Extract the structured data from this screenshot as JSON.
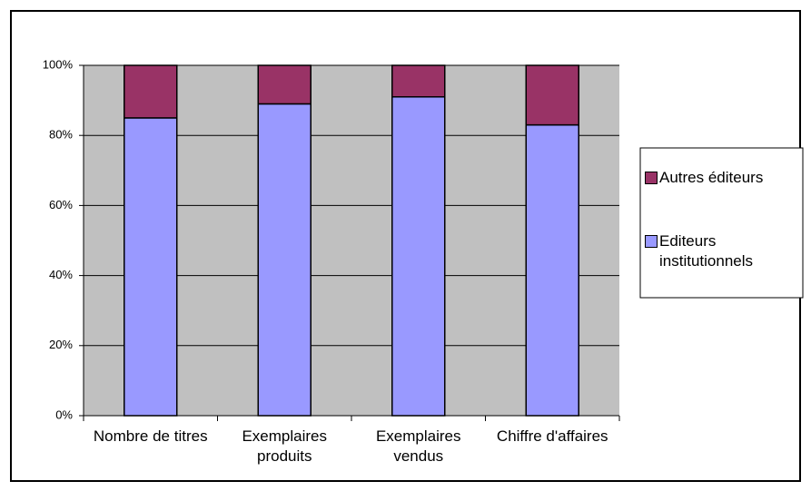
{
  "chart_data": {
    "type": "stacked_bar",
    "categories": [
      "Nombre de titres",
      "Exemplaires produits",
      "Exemplaires vendus",
      "Chiffre d'affaires"
    ],
    "series": [
      {
        "name": "Editeurs institutionnels",
        "color": "#9999ff",
        "values": [
          85,
          89,
          91,
          83
        ]
      },
      {
        "name": "Autres éditeurs",
        "color": "#993366",
        "values": [
          15,
          11,
          9,
          17
        ]
      }
    ],
    "ylim": [
      0,
      100
    ],
    "yticks": [
      {
        "value": 0,
        "label": "0%"
      },
      {
        "value": 20,
        "label": "20%"
      },
      {
        "value": 40,
        "label": "40%"
      },
      {
        "value": 60,
        "label": "60%"
      },
      {
        "value": 80,
        "label": "80%"
      },
      {
        "value": 100,
        "label": "100%"
      }
    ],
    "grid": true,
    "legend": "right"
  }
}
